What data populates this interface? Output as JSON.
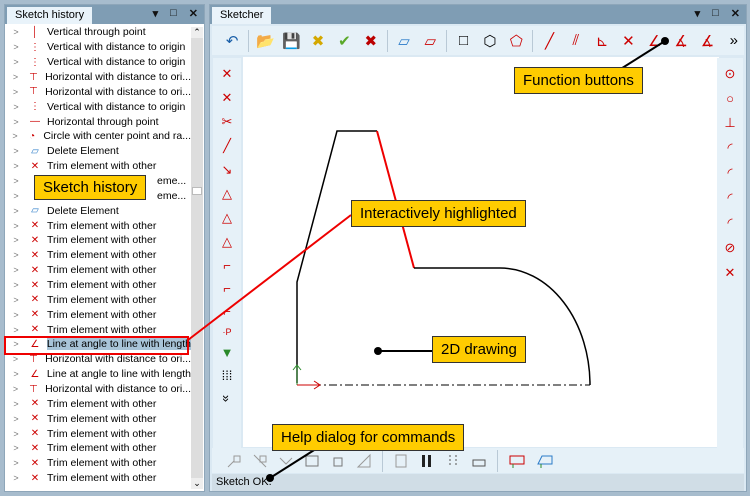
{
  "history": {
    "tab": "Sketch history",
    "menu_icon": "▾",
    "max_icon": "□",
    "close_icon": "✕",
    "items": [
      {
        "label": "Vertical through point",
        "icon": "vertical-line-icon"
      },
      {
        "label": "Vertical with distance to origin",
        "icon": "vertical-distance-icon"
      },
      {
        "label": "Vertical with distance to origin",
        "icon": "vertical-distance-icon"
      },
      {
        "label": "Horizontal with distance to ori...",
        "icon": "horizontal-distance-icon"
      },
      {
        "label": "Horizontal with distance to ori...",
        "icon": "horizontal-distance-icon"
      },
      {
        "label": "Vertical with distance to origin",
        "icon": "vertical-distance-icon"
      },
      {
        "label": "Horizontal through point",
        "icon": "horizontal-line-icon"
      },
      {
        "label": "Circle with center point and ra...",
        "icon": "circle-icon"
      },
      {
        "label": "Delete Element",
        "icon": "eraser-icon"
      },
      {
        "label": "Trim element with other",
        "icon": "trim-icon"
      },
      {
        "label": "eme...",
        "icon": "trim-icon"
      },
      {
        "label": "eme...",
        "icon": "trim-icon"
      },
      {
        "label": "Delete Element",
        "icon": "eraser-icon"
      },
      {
        "label": "Trim element with other",
        "icon": "trim-icon"
      },
      {
        "label": "Trim element with other",
        "icon": "trim-icon"
      },
      {
        "label": "Trim element with other",
        "icon": "trim-icon"
      },
      {
        "label": "Trim element with other",
        "icon": "trim-icon"
      },
      {
        "label": "Trim element with other",
        "icon": "trim-icon"
      },
      {
        "label": "Trim element with other",
        "icon": "trim-icon"
      },
      {
        "label": "Trim element with other",
        "icon": "trim-icon"
      },
      {
        "label": "Trim element with other",
        "icon": "trim-icon"
      },
      {
        "label": "Line at angle to line with length",
        "icon": "angle-line-icon",
        "selected": true
      },
      {
        "label": "Horizontal with distance to ori...",
        "icon": "horizontal-distance-icon"
      },
      {
        "label": "Line at angle to line with length",
        "icon": "angle-line-icon"
      },
      {
        "label": "Horizontal with distance to ori...",
        "icon": "horizontal-distance-icon"
      },
      {
        "label": "Trim element with other",
        "icon": "trim-icon"
      },
      {
        "label": "Trim element with other",
        "icon": "trim-icon"
      },
      {
        "label": "Trim element with other",
        "icon": "trim-icon"
      },
      {
        "label": "Trim element with other",
        "icon": "trim-icon"
      },
      {
        "label": "Trim element with other",
        "icon": "trim-icon"
      },
      {
        "label": "Trim element with other",
        "icon": "trim-icon"
      }
    ]
  },
  "sketcher": {
    "tab": "Sketcher",
    "status": "Sketch OK.",
    "overflow": "»",
    "more": "»"
  },
  "callouts": {
    "function_buttons": "Function buttons",
    "sketch_history": "Sketch history",
    "highlighted": "Interactively highlighted",
    "drawing": "2D drawing",
    "help": "Help dialog for commands"
  },
  "colors": {
    "callout": "#ffcc00",
    "highlight": "#e00000",
    "accent": "#7f9db4"
  }
}
